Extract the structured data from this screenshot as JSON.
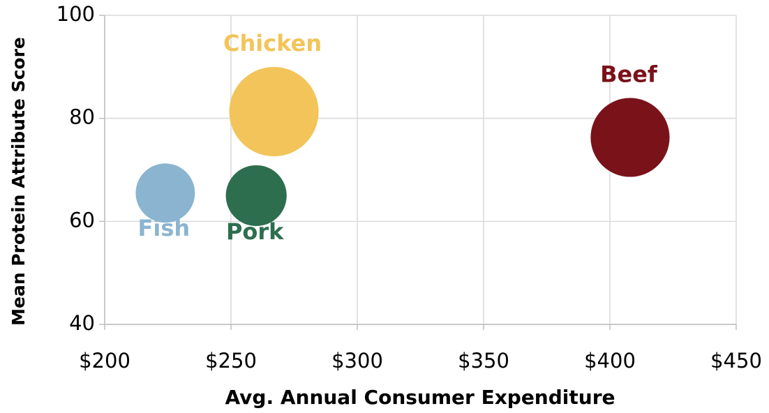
{
  "chart_data": {
    "type": "bubble",
    "xlabel": "Avg. Annual Consumer Expenditure",
    "ylabel": "Mean Protein Attribute Score",
    "series": [
      {
        "name": "Fish",
        "color": "#8ab4d0",
        "x": [
          224
        ],
        "values": [
          65.5
        ],
        "sizes": [
          18
        ],
        "label_position": "below"
      },
      {
        "name": "Pork",
        "color": "#2d6e4e",
        "x": [
          260
        ],
        "values": [
          65
        ],
        "sizes": [
          19
        ],
        "label_position": "below"
      },
      {
        "name": "Chicken",
        "color": "#f2c45a",
        "x": [
          267
        ],
        "values": [
          81.3
        ],
        "sizes": [
          41
        ],
        "label_position": "above"
      },
      {
        "name": "Beef",
        "color": "#7a121a",
        "x": [
          408
        ],
        "values": [
          76.3
        ],
        "sizes": [
          32
        ],
        "label_position": "above"
      }
    ],
    "xlim": [
      200,
      450
    ],
    "xticks": [
      {
        "value": 200,
        "label": "$200"
      },
      {
        "value": 250,
        "label": "$250"
      },
      {
        "value": 300,
        "label": "$300"
      },
      {
        "value": 350,
        "label": "$350"
      },
      {
        "value": 400,
        "label": "$400"
      },
      {
        "value": 450,
        "label": "$450"
      }
    ],
    "ylim": [
      40,
      100
    ],
    "yticks": [
      40,
      60,
      80,
      100
    ],
    "grid": true
  }
}
